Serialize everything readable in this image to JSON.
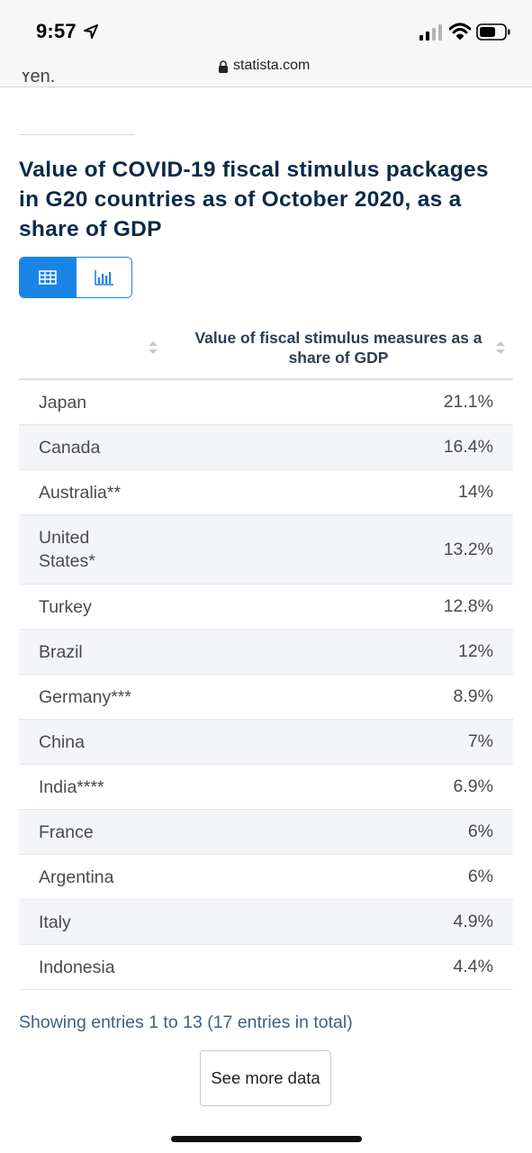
{
  "status_bar": {
    "time": "9:57"
  },
  "browser": {
    "url": "statista.com"
  },
  "cut_text": "Yen.",
  "chart": {
    "title": "Value of COVID-19 fiscal stimulus packages in G20 countries as of October 2020, as a share of GDP",
    "view_toggle": [
      "table-icon",
      "bar-chart-icon"
    ]
  },
  "table": {
    "columns": [
      "",
      "Value of fiscal stimulus measures as a share of GDP"
    ],
    "rows": [
      {
        "country": "Japan",
        "value": "21.1%"
      },
      {
        "country": "Canada",
        "value": "16.4%"
      },
      {
        "country": "Australia**",
        "value": "14%"
      },
      {
        "country": "United States*",
        "value": "13.2%"
      },
      {
        "country": "Turkey",
        "value": "12.8%"
      },
      {
        "country": "Brazil",
        "value": "12%"
      },
      {
        "country": "Germany***",
        "value": "8.9%"
      },
      {
        "country": "China",
        "value": "7%"
      },
      {
        "country": "India****",
        "value": "6.9%"
      },
      {
        "country": "France",
        "value": "6%"
      },
      {
        "country": "Argentina",
        "value": "6%"
      },
      {
        "country": "Italy",
        "value": "4.9%"
      },
      {
        "country": "Indonesia",
        "value": "4.4%"
      }
    ],
    "footer": "Showing entries 1 to 13 (17 entries in total)",
    "more_button": "See more data"
  },
  "colors": {
    "accent": "#1a84e4",
    "title": "#0b2a4a",
    "row_alt": "#f3f5f8",
    "footer_text": "#3f5f86"
  }
}
